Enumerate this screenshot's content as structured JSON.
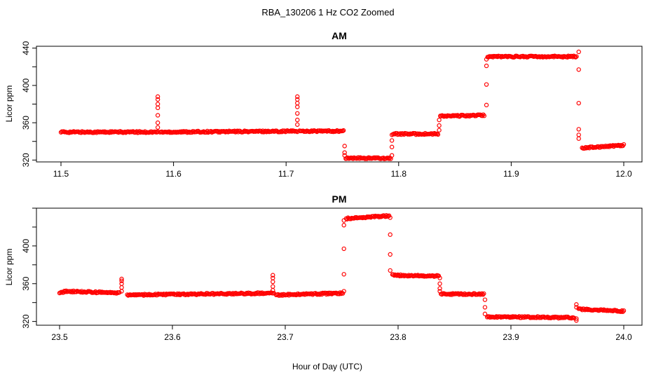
{
  "figure": {
    "title": "RBA_130206  1 Hz CO2 Zoomed",
    "xlabel": "Hour of Day (UTC)",
    "point_color": "#ff0000",
    "marker": "open-circle"
  },
  "chart_data": [
    {
      "type": "scatter",
      "title": "AM",
      "xlabel": "",
      "ylabel": "Licor ppm",
      "xlim": [
        11.5,
        12.0
      ],
      "ylim": [
        318,
        442
      ],
      "xticks": [
        "11.5",
        "11.6",
        "11.7",
        "11.8",
        "11.9",
        "12.0"
      ],
      "yticks": [
        "320",
        "360",
        "400",
        "440"
      ],
      "grid": false,
      "series": [
        {
          "segments": [
            {
              "x0": 11.5,
              "x1": 11.586,
              "y0": 350,
              "y1": 350
            },
            {
              "x0": 11.588,
              "x1": 11.71,
              "y0": 350,
              "y1": 351
            },
            {
              "x0": 11.712,
              "x1": 11.751,
              "y0": 351,
              "y1": 351
            },
            {
              "x0": 11.753,
              "x1": 11.793,
              "y0": 322,
              "y1": 322
            },
            {
              "x0": 11.795,
              "x1": 11.835,
              "y0": 348,
              "y1": 348
            },
            {
              "x0": 11.837,
              "x1": 11.876,
              "y0": 367,
              "y1": 368
            },
            {
              "x0": 11.879,
              "x1": 11.958,
              "y0": 431,
              "y1": 431
            },
            {
              "x0": 11.963,
              "x1": 12.0,
              "y0": 333,
              "y1": 336
            }
          ],
          "spikes": [
            {
              "x": 11.586,
              "y": [
                355,
                360,
                368,
                376,
                380,
                385,
                388
              ]
            },
            {
              "x": 11.71,
              "y": [
                358,
                363,
                370,
                377,
                381,
                385,
                388
              ]
            },
            {
              "x": 11.752,
              "y": [
                335,
                328,
                325
              ]
            },
            {
              "x": 11.794,
              "y": [
                325,
                334,
                341,
                347
              ]
            },
            {
              "x": 11.836,
              "y": [
                352,
                357,
                363
              ]
            },
            {
              "x": 11.878,
              "y": [
                379,
                401,
                421,
                428
              ]
            },
            {
              "x": 11.96,
              "y": [
                436,
                417,
                381,
                353,
                347,
                343
              ]
            }
          ]
        }
      ]
    },
    {
      "type": "scatter",
      "title": "PM",
      "xlabel": "",
      "ylabel": "Licor ppm",
      "xlim": [
        23.5,
        24.0
      ],
      "ylim": [
        316,
        440
      ],
      "xticks": [
        "23.5",
        "23.6",
        "23.7",
        "23.8",
        "23.9",
        "24.0"
      ],
      "yticks": [
        "320",
        "360",
        "400"
      ],
      "grid": false,
      "series": [
        {
          "segments": [
            {
              "x0": 23.5,
              "x1": 23.505,
              "y0": 350,
              "y1": 352
            },
            {
              "x0": 23.505,
              "x1": 23.553,
              "y0": 352,
              "y1": 350
            },
            {
              "x0": 23.56,
              "x1": 23.69,
              "y0": 348,
              "y1": 350
            },
            {
              "x0": 23.692,
              "x1": 23.751,
              "y0": 348,
              "y1": 350
            },
            {
              "x0": 23.754,
              "x1": 23.792,
              "y0": 429,
              "y1": 432
            },
            {
              "x0": 23.795,
              "x1": 23.836,
              "y0": 369,
              "y1": 368
            },
            {
              "x0": 23.838,
              "x1": 23.876,
              "y0": 349,
              "y1": 349
            },
            {
              "x0": 23.879,
              "x1": 23.956,
              "y0": 325,
              "y1": 324
            },
            {
              "x0": 23.96,
              "x1": 24.0,
              "y0": 333,
              "y1": 331
            }
          ],
          "spikes": [
            {
              "x": 23.555,
              "y": [
                352,
                356,
                360,
                363,
                365
              ]
            },
            {
              "x": 23.689,
              "y": [
                353,
                357,
                362,
                366,
                369
              ]
            },
            {
              "x": 23.752,
              "y": [
                352,
                370,
                397,
                422,
                427
              ]
            },
            {
              "x": 23.793,
              "y": [
                430,
                412,
                391,
                374
              ]
            },
            {
              "x": 23.837,
              "y": [
                366,
                360,
                355,
                352
              ]
            },
            {
              "x": 23.877,
              "y": [
                343,
                335,
                328
              ]
            },
            {
              "x": 23.958,
              "y": [
                321,
                323,
                338,
                335
              ]
            }
          ]
        }
      ]
    }
  ]
}
